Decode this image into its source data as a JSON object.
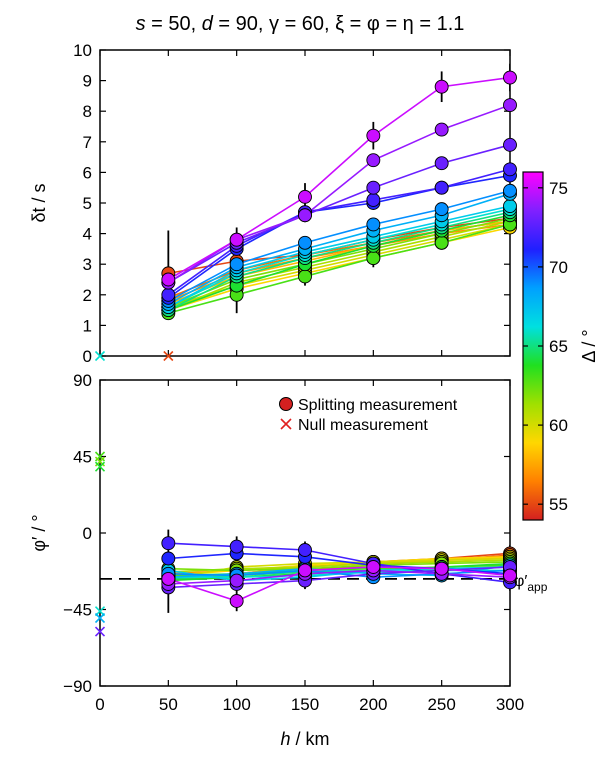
{
  "title": "s = 50, d = 90, γ = 60, ξ = φ = η = 1.1",
  "title_parts": {
    "s": "s",
    "s_eq": " = 50, ",
    "d": "d",
    "d_eq": " = 90, γ = 60, ξ = φ = η = 1.1"
  },
  "x_axis": {
    "label_var": "h",
    "label_unit": " / km",
    "range": [
      0,
      300
    ],
    "ticks": [
      "0",
      "50",
      "100",
      "150",
      "200",
      "250",
      "300"
    ],
    "tick_values": [
      0,
      50,
      100,
      150,
      200,
      250,
      300
    ]
  },
  "top_panel": {
    "ylabel_var": "δt",
    "ylabel_unit": " / s",
    "range": [
      0,
      10
    ],
    "ticks": [
      "0",
      "1",
      "2",
      "3",
      "4",
      "5",
      "6",
      "7",
      "8",
      "9",
      "10"
    ],
    "tick_values": [
      0,
      1,
      2,
      3,
      4,
      5,
      6,
      7,
      8,
      9,
      10
    ]
  },
  "bottom_panel": {
    "ylabel": "φ′ / °",
    "range": [
      -90,
      90
    ],
    "ticks": [
      "90",
      "45",
      "0",
      "−45",
      "−90"
    ],
    "tick_values": [
      90,
      45,
      0,
      -45,
      -90
    ],
    "reference_line": {
      "value": -27,
      "label": "φ′",
      "label_sub": "app"
    }
  },
  "colorbar": {
    "label": "Δ / °",
    "range": [
      54,
      76
    ],
    "ticks": [
      "55",
      "60",
      "65",
      "70",
      "75"
    ],
    "tick_values": [
      55,
      60,
      65,
      70,
      75
    ],
    "colors": [
      "#d42020",
      "#ff8000",
      "#ffd700",
      "#a0e000",
      "#20e020",
      "#00e0e0",
      "#00a0ff",
      "#2020ff",
      "#8020ff",
      "#ff00ff"
    ]
  },
  "legend": {
    "position": "top-right of bottom panel",
    "entries": [
      {
        "marker": "filled-circle",
        "label": "Splitting measurement"
      },
      {
        "marker": "cross",
        "label": "Null measurement"
      }
    ]
  },
  "chart_data": {
    "type": "line",
    "x": [
      50,
      100,
      150,
      200,
      250,
      300
    ],
    "delta_t_series": [
      {
        "delta": 75,
        "values": [
          2.5,
          3.8,
          5.2,
          7.2,
          8.8,
          9.1
        ]
      },
      {
        "delta": 74,
        "values": [
          2.4,
          3.8,
          4.6,
          6.4,
          7.4,
          8.2
        ]
      },
      {
        "delta": 73,
        "values": [
          2.4,
          3.7,
          4.6,
          5.5,
          6.3,
          6.9
        ]
      },
      {
        "delta": 72,
        "values": [
          2.0,
          3.6,
          4.7,
          5.1,
          5.5,
          6.1
        ]
      },
      {
        "delta": 71,
        "values": [
          1.9,
          3.5,
          4.7,
          5.0,
          5.5,
          5.9
        ]
      },
      {
        "delta": 69,
        "values": [
          1.8,
          3.0,
          3.7,
          4.3,
          4.8,
          5.4
        ]
      },
      {
        "delta": 68,
        "values": [
          1.7,
          2.9,
          3.5,
          4.1,
          4.6,
          5.3
        ]
      },
      {
        "delta": 67,
        "values": [
          1.6,
          2.8,
          3.4,
          3.9,
          4.4,
          4.9
        ]
      },
      {
        "delta": 66,
        "values": [
          1.6,
          2.7,
          3.3,
          3.8,
          4.3,
          4.8
        ]
      },
      {
        "delta": 65,
        "values": [
          1.5,
          2.6,
          3.2,
          3.7,
          4.2,
          4.7
        ]
      },
      {
        "delta": 64,
        "values": [
          1.5,
          2.3,
          3.0,
          3.6,
          4.1,
          4.6
        ]
      },
      {
        "delta": 63,
        "values": [
          1.4,
          2.0,
          2.6,
          3.2,
          3.7,
          4.3
        ]
      },
      {
        "delta": 62,
        "values": [
          1.6,
          2.5,
          3.0,
          3.5,
          4.0,
          4.5
        ]
      },
      {
        "delta": 61,
        "values": [
          1.5,
          2.4,
          2.9,
          3.4,
          3.9,
          4.4
        ]
      },
      {
        "delta": 60,
        "values": [
          1.6,
          2.3,
          2.8,
          3.3,
          3.8,
          4.3
        ]
      },
      {
        "delta": 59,
        "values": [
          1.5,
          2.2,
          2.7,
          3.2,
          3.7,
          4.2
        ]
      },
      {
        "delta": 58,
        "values": [
          1.7,
          2.6,
          3.1,
          3.6,
          4.1,
          4.4
        ]
      },
      {
        "delta": 57,
        "values": [
          1.8,
          2.7,
          3.2,
          3.6,
          4.0,
          4.3
        ]
      },
      {
        "delta": 56,
        "values": [
          1.9,
          2.8,
          3.3,
          3.7,
          4.1,
          4.4
        ]
      },
      {
        "delta": 55,
        "values": [
          2.7,
          3.1,
          3.3,
          3.8,
          4.2,
          4.5
        ]
      }
    ],
    "phi_series": [
      {
        "delta": 75,
        "values": [
          -27,
          -40,
          -22,
          -20,
          -21,
          -25
        ]
      },
      {
        "delta": 74,
        "values": [
          -30,
          -28,
          -24,
          -22,
          -24,
          -26
        ]
      },
      {
        "delta": 73,
        "values": [
          -32,
          -30,
          -28,
          -24,
          -22,
          -20
        ]
      },
      {
        "delta": 72,
        "values": [
          -6,
          -8,
          -10,
          -18,
          -24,
          -29
        ]
      },
      {
        "delta": 71,
        "values": [
          -15,
          -12,
          -14,
          -19,
          -21,
          -24
        ]
      },
      {
        "delta": 69,
        "values": [
          -24,
          -25,
          -22,
          -26,
          -24,
          -22
        ]
      },
      {
        "delta": 68,
        "values": [
          -26,
          -24,
          -21,
          -24,
          -25,
          -19
        ]
      },
      {
        "delta": 67,
        "values": [
          -22,
          -28,
          -26,
          -22,
          -21,
          -20
        ]
      },
      {
        "delta": 66,
        "values": [
          -26,
          -26,
          -25,
          -23,
          -22,
          -22
        ]
      },
      {
        "delta": 65,
        "values": [
          -27,
          -25,
          -23,
          -22,
          -21,
          -20
        ]
      },
      {
        "delta": 64,
        "values": [
          -28,
          -26,
          -24,
          -22,
          -20,
          -18
        ]
      },
      {
        "delta": 63,
        "values": [
          -25,
          -24,
          -22,
          -21,
          -20,
          -19
        ]
      },
      {
        "delta": 62,
        "values": [
          -21,
          -22,
          -21,
          -19,
          -18,
          -17
        ]
      },
      {
        "delta": 61,
        "values": [
          -23,
          -21,
          -20,
          -18,
          -17,
          -16
        ]
      },
      {
        "delta": 60,
        "values": [
          -27,
          -20,
          -18,
          -17,
          -16,
          -15
        ]
      },
      {
        "delta": 59,
        "values": [
          -25,
          -22,
          -19,
          -17,
          -15,
          -14
        ]
      },
      {
        "delta": 58,
        "values": [
          -27,
          -24,
          -20,
          -18,
          -16,
          -14
        ]
      },
      {
        "delta": 57,
        "values": [
          -24,
          -22,
          -20,
          -18,
          -16,
          -15
        ]
      },
      {
        "delta": 56,
        "values": [
          -28,
          -25,
          -22,
          -19,
          -16,
          -13
        ]
      },
      {
        "delta": 55,
        "values": [
          -26,
          -24,
          -20,
          -17,
          -15,
          -12
        ]
      }
    ],
    "delta_t_errors": [
      {
        "x": 50,
        "y": 2.7,
        "err": 1.4
      },
      {
        "x": 100,
        "y": 3.9,
        "err": 0.3
      },
      {
        "x": 100,
        "y": 1.9,
        "err": 0.5
      },
      {
        "x": 150,
        "y": 5.2,
        "err": 0.45
      },
      {
        "x": 150,
        "y": 2.6,
        "err": 0.3
      },
      {
        "x": 200,
        "y": 7.2,
        "err": 0.45
      },
      {
        "x": 200,
        "y": 3.2,
        "err": 0.3
      },
      {
        "x": 250,
        "y": 8.8,
        "err": 0.5
      },
      {
        "x": 250,
        "y": 3.8,
        "err": 0.25
      },
      {
        "x": 300,
        "y": 9.1,
        "err": 0.45
      },
      {
        "x": 300,
        "y": 4.3,
        "err": 0.25
      }
    ],
    "phi_errors": [
      {
        "x": 50,
        "y": -6,
        "err": 8
      },
      {
        "x": 50,
        "y": -32,
        "err": 15
      },
      {
        "x": 100,
        "y": -8,
        "err": 6
      },
      {
        "x": 100,
        "y": -40,
        "err": 6
      },
      {
        "x": 150,
        "y": -10,
        "err": 5
      },
      {
        "x": 150,
        "y": -28,
        "err": 5
      },
      {
        "x": 200,
        "y": -18,
        "err": 4
      },
      {
        "x": 250,
        "y": -21,
        "err": 4
      },
      {
        "x": 300,
        "y": -12,
        "err": 5
      },
      {
        "x": 300,
        "y": -29,
        "err": 5
      }
    ],
    "delta_t_nulls": [
      {
        "x": 0,
        "y": 0,
        "delta": 66
      },
      {
        "x": 50,
        "y": 0,
        "delta": 55
      }
    ],
    "phi_nulls": [
      {
        "x": 0,
        "y": 45,
        "delta": 63
      },
      {
        "x": 0,
        "y": 42,
        "delta": 62
      },
      {
        "x": 0,
        "y": 39,
        "delta": 64
      },
      {
        "x": 0,
        "y": -46,
        "delta": 66
      },
      {
        "x": 0,
        "y": -50,
        "delta": 68
      },
      {
        "x": 0,
        "y": -58,
        "delta": 73
      }
    ]
  }
}
